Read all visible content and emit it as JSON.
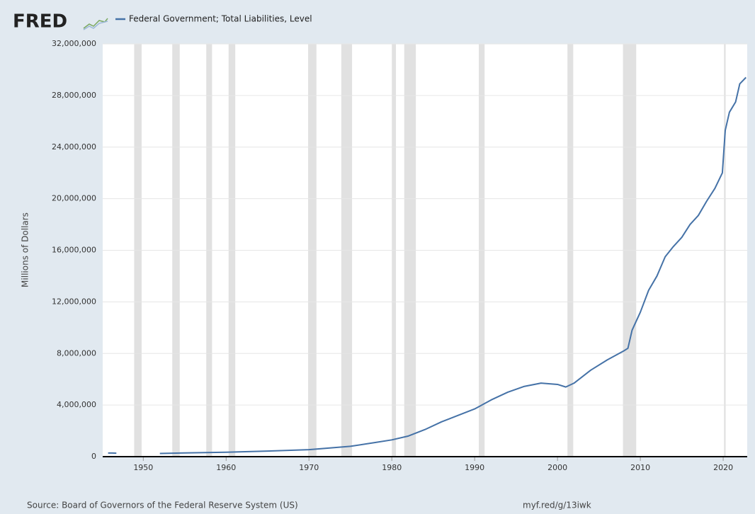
{
  "chart_data": {
    "type": "line",
    "brand": "FRED",
    "ylabel": "Millions of Dollars",
    "source": "Source: Board of Governors of the Federal Reserve System (US)",
    "url": "myf.red/g/13iwk",
    "xlim": [
      1945.1,
      2022.9
    ],
    "xticks": [
      1950,
      1960,
      1970,
      1980,
      1990,
      2000,
      2010,
      2020
    ],
    "ylim": [
      0,
      32000000
    ],
    "yticks": [
      0,
      {
        "value": 4000000,
        "label": "4,000,000"
      },
      {
        "value": 8000000,
        "label": "8,000,000"
      },
      {
        "value": 12000000,
        "label": "12,000,000"
      },
      {
        "value": 16000000,
        "label": "16,000,000"
      },
      {
        "value": 20000000,
        "label": "20,000,000"
      },
      {
        "value": 24000000,
        "label": "24,000,000"
      },
      {
        "value": 28000000,
        "label": "28,000,000"
      },
      {
        "value": 32000000,
        "label": "32,000,000"
      }
    ],
    "grid": true,
    "recession_color": "#e1e1e1",
    "recessions": [
      [
        1948.9,
        1949.8
      ],
      [
        1953.5,
        1954.4
      ],
      [
        1957.6,
        1958.3
      ],
      [
        1960.3,
        1961.1
      ],
      [
        1969.9,
        1970.9
      ],
      [
        1973.9,
        1975.2
      ],
      [
        1980.0,
        1980.5
      ],
      [
        1981.5,
        1982.9
      ],
      [
        1990.5,
        1991.2
      ],
      [
        2001.2,
        2001.9
      ],
      [
        2007.9,
        2009.5
      ],
      [
        2020.1,
        2020.3
      ]
    ],
    "series": [
      {
        "name": "Federal Government; Total Liabilities, Level",
        "color": "#4572a7",
        "x": [
          1945.75,
          1946.25,
          1946.75,
          1949,
          1952,
          1955,
          1960,
          1965,
          1970,
          1975,
          1978,
          1980,
          1982,
          1984,
          1986,
          1988,
          1990,
          1992,
          1994,
          1996,
          1998,
          2000,
          2001,
          2002,
          2004,
          2006,
          2008,
          2008.5,
          2009,
          2010,
          2011,
          2012,
          2013,
          2014,
          2015,
          2016,
          2017,
          2018,
          2019,
          2019.9,
          2020.25,
          2020.75,
          2021.5,
          2022,
          2022.75
        ],
        "values": [
          280000,
          280000,
          270000,
          null,
          250000,
          290000,
          340000,
          430000,
          540000,
          800000,
          1100000,
          1300000,
          1600000,
          2100000,
          2700000,
          3200000,
          3700000,
          4400000,
          5000000,
          5450000,
          5700000,
          5600000,
          5400000,
          5700000,
          6700000,
          7500000,
          8200000,
          8400000,
          9800000,
          11200000,
          12900000,
          14000000,
          15500000,
          16300000,
          17000000,
          18000000,
          18700000,
          19800000,
          20800000,
          22000000,
          25300000,
          26700000,
          27500000,
          28900000,
          29400000
        ]
      }
    ]
  }
}
